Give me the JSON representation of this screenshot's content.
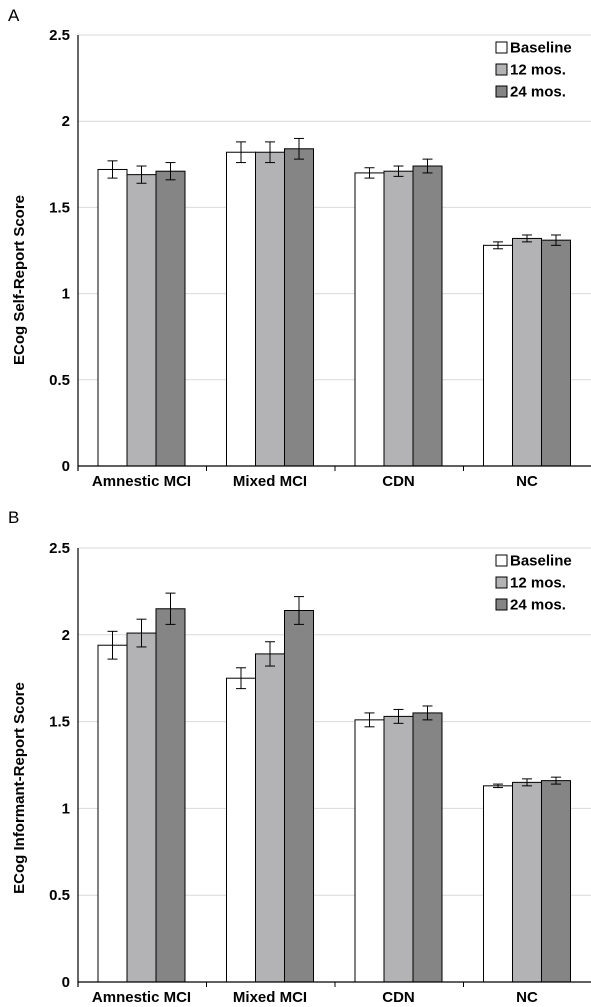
{
  "panels": [
    {
      "letter": "A",
      "ylabel": "ECog Self-Report Score"
    },
    {
      "letter": "B",
      "ylabel": "ECog Informant-Report Score"
    }
  ],
  "legend": [
    {
      "label": "Baseline",
      "color": "#ffffff"
    },
    {
      "label": "12 mos.",
      "color": "#b3b3b5"
    },
    {
      "label": "24 mos.",
      "color": "#858585"
    }
  ],
  "chart_data": [
    {
      "type": "bar",
      "title": "",
      "xlabel": "",
      "ylabel": "ECog Self-Report Score",
      "ylim": [
        0,
        2.5
      ],
      "yticks": [
        0,
        0.5,
        1,
        1.5,
        2,
        2.5
      ],
      "ytick_labels": [
        "0",
        "0.5",
        "1",
        "1.5",
        "2",
        "2.5"
      ],
      "grid": true,
      "legend_position": "top-right",
      "categories": [
        "Amnestic MCI",
        "Mixed MCI",
        "CDN",
        "NC"
      ],
      "series": [
        {
          "name": "Baseline",
          "values": [
            1.72,
            1.82,
            1.7,
            1.28
          ],
          "errors": [
            0.05,
            0.06,
            0.03,
            0.02
          ]
        },
        {
          "name": "12 mos.",
          "values": [
            1.69,
            1.82,
            1.71,
            1.32
          ],
          "errors": [
            0.05,
            0.06,
            0.03,
            0.02
          ]
        },
        {
          "name": "24 mos.",
          "values": [
            1.71,
            1.84,
            1.74,
            1.31
          ],
          "errors": [
            0.05,
            0.06,
            0.04,
            0.03
          ]
        }
      ]
    },
    {
      "type": "bar",
      "title": "",
      "xlabel": "",
      "ylabel": "ECog Informant-Report Score",
      "ylim": [
        0,
        2.5
      ],
      "yticks": [
        0,
        0.5,
        1,
        1.5,
        2,
        2.5
      ],
      "ytick_labels": [
        "0",
        "0.5",
        "1",
        "1.5",
        "2",
        "2.5"
      ],
      "grid": true,
      "legend_position": "top-right",
      "categories": [
        "Amnestic MCI",
        "Mixed MCI",
        "CDN",
        "NC"
      ],
      "series": [
        {
          "name": "Baseline",
          "values": [
            1.94,
            1.75,
            1.51,
            1.13
          ],
          "errors": [
            0.08,
            0.06,
            0.04,
            0.01
          ]
        },
        {
          "name": "12 mos.",
          "values": [
            2.01,
            1.89,
            1.53,
            1.15
          ],
          "errors": [
            0.08,
            0.07,
            0.04,
            0.02
          ]
        },
        {
          "name": "24 mos.",
          "values": [
            2.15,
            2.14,
            1.55,
            1.16
          ],
          "errors": [
            0.09,
            0.08,
            0.04,
            0.02
          ]
        }
      ]
    }
  ]
}
